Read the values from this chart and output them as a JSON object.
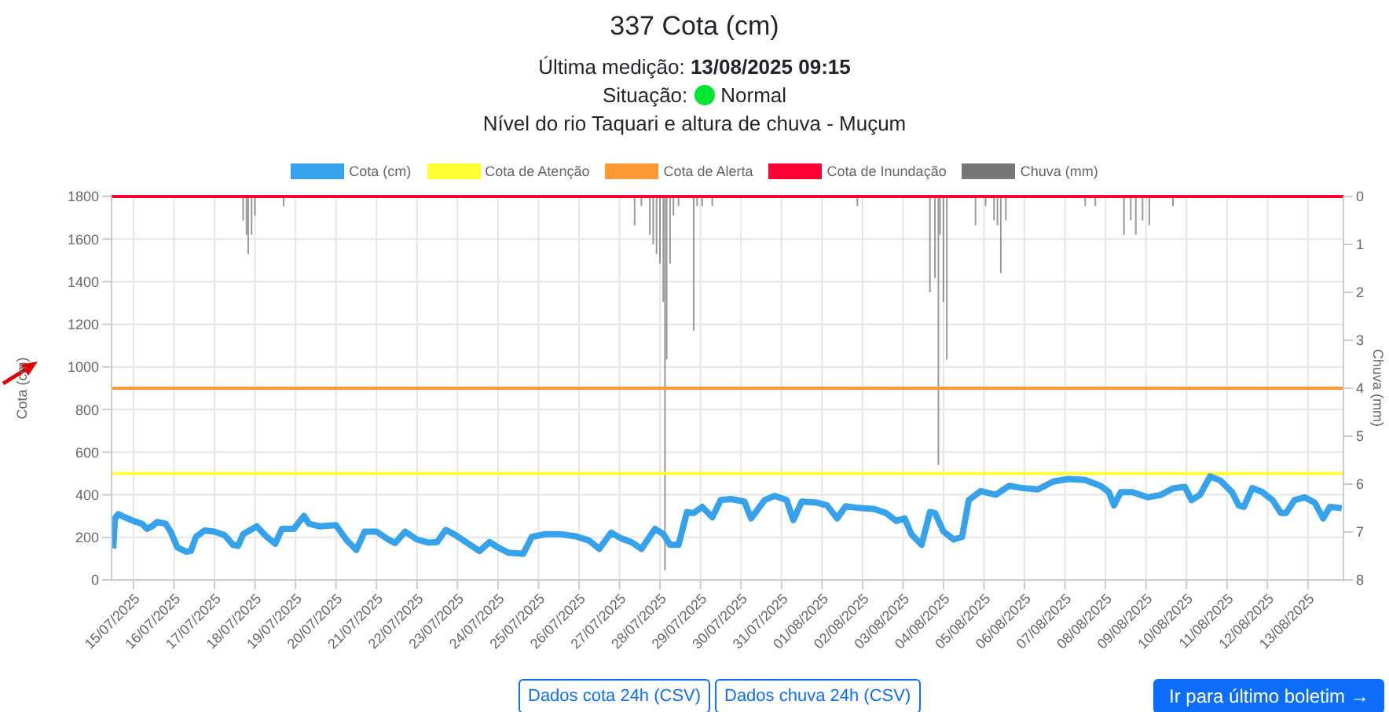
{
  "chart_data": {
    "type": "line",
    "title": "337 Cota (cm)",
    "subtitle": "Nível do rio Taquari e altura de chuva - Muçum",
    "annotations": [
      "Última medição:",
      "13/08/2025 09:15",
      "Situação:",
      "Normal",
      "Dados cota 24h (CSV)",
      "Dados chuva 24h (CSV)",
      "Ir para último boletim →"
    ],
    "ylabel": "Cota (cm)",
    "y2label": "Chuva (mm)",
    "xlim": [
      "2025-07-14T11:00",
      "2025-08-13T21:00"
    ],
    "xticks": [
      {
        "value": "2025-07-15",
        "label": "15/07/2025"
      },
      {
        "value": "2025-07-16",
        "label": "16/07/2025"
      },
      {
        "value": "2025-07-17",
        "label": "17/07/2025"
      },
      {
        "value": "2025-07-18",
        "label": "18/07/2025"
      },
      {
        "value": "2025-07-19",
        "label": "19/07/2025"
      },
      {
        "value": "2025-07-20",
        "label": "20/07/2025"
      },
      {
        "value": "2025-07-21",
        "label": "21/07/2025"
      },
      {
        "value": "2025-07-22",
        "label": "22/07/2025"
      },
      {
        "value": "2025-07-23",
        "label": "23/07/2025"
      },
      {
        "value": "2025-07-24",
        "label": "24/07/2025"
      },
      {
        "value": "2025-07-25",
        "label": "25/07/2025"
      },
      {
        "value": "2025-07-26",
        "label": "26/07/2025"
      },
      {
        "value": "2025-07-27",
        "label": "27/07/2025"
      },
      {
        "value": "2025-07-28",
        "label": "28/07/2025"
      },
      {
        "value": "2025-07-29",
        "label": "29/07/2025"
      },
      {
        "value": "2025-07-30",
        "label": "30/07/2025"
      },
      {
        "value": "2025-07-31",
        "label": "31/07/2025"
      },
      {
        "value": "2025-08-01",
        "label": "01/08/2025"
      },
      {
        "value": "2025-08-02",
        "label": "02/08/2025"
      },
      {
        "value": "2025-08-03",
        "label": "03/08/2025"
      },
      {
        "value": "2025-08-04",
        "label": "04/08/2025"
      },
      {
        "value": "2025-08-05",
        "label": "05/08/2025"
      },
      {
        "value": "2025-08-06",
        "label": "06/08/2025"
      },
      {
        "value": "2025-08-07",
        "label": "07/08/2025"
      },
      {
        "value": "2025-08-08",
        "label": "08/08/2025"
      },
      {
        "value": "2025-08-09",
        "label": "09/08/2025"
      },
      {
        "value": "2025-08-10",
        "label": "10/08/2025"
      },
      {
        "value": "2025-08-11",
        "label": "11/08/2025"
      },
      {
        "value": "2025-08-12",
        "label": "12/08/2025"
      },
      {
        "value": "2025-08-13",
        "label": "13/08/2025"
      }
    ],
    "ylim": [
      0,
      1800
    ],
    "yticks": [
      0,
      200,
      400,
      600,
      800,
      1000,
      1200,
      1400,
      1600,
      1800
    ],
    "y2lim": [
      8,
      0
    ],
    "y2ticks": [
      0,
      1,
      2,
      3,
      4,
      5,
      6,
      7,
      8
    ],
    "grid": true,
    "legend": "top",
    "marker": "none",
    "line_style": "solid",
    "ref_lines": [
      {
        "axis": "y",
        "value": 500,
        "label": "Cota de Atenção",
        "color": "#ffff33"
      },
      {
        "axis": "y",
        "value": 900,
        "label": "Cota de Alerta",
        "color": "#ff9933"
      },
      {
        "axis": "y",
        "value": 1800,
        "label": "Cota de Inundação",
        "color": "#ff0033"
      }
    ],
    "series": [
      {
        "name": "Cota (cm)",
        "color": "#36a2eb",
        "x": [
          "2025-07-14T12:00",
          "2025-07-14T13:00",
          "2025-07-14T15:00",
          "2025-07-14T19:00",
          "2025-07-15T00:00",
          "2025-07-15T05:00",
          "2025-07-15T08:00",
          "2025-07-15T11:00",
          "2025-07-15T14:00",
          "2025-07-15T19:00",
          "2025-07-15T22:00",
          "2025-07-16T02:00",
          "2025-07-16T07:00",
          "2025-07-16T10:00",
          "2025-07-16T13:00",
          "2025-07-16T18:00",
          "2025-07-17T00:00",
          "2025-07-17T06:00",
          "2025-07-17T11:00",
          "2025-07-17T14:00",
          "2025-07-17T17:00",
          "2025-07-18T01:00",
          "2025-07-18T07:00",
          "2025-07-18T12:00",
          "2025-07-18T16:00",
          "2025-07-18T23:00",
          "2025-07-19T05:00",
          "2025-07-19T08:00",
          "2025-07-19T14:00",
          "2025-07-20T00:00",
          "2025-07-20T06:00",
          "2025-07-20T12:00",
          "2025-07-20T17:00",
          "2025-07-21T00:00",
          "2025-07-21T07:00",
          "2025-07-21T11:00",
          "2025-07-21T17:00",
          "2025-07-22T00:00",
          "2025-07-22T07:00",
          "2025-07-22T12:00",
          "2025-07-22T17:00",
          "2025-07-22T23:00",
          "2025-07-23T05:00",
          "2025-07-23T13:00",
          "2025-07-23T19:00",
          "2025-07-24T00:00",
          "2025-07-24T06:00",
          "2025-07-24T15:00",
          "2025-07-24T20:00",
          "2025-07-25T04:00",
          "2025-07-25T13:00",
          "2025-07-25T22:00",
          "2025-07-26T06:00",
          "2025-07-26T12:00",
          "2025-07-26T19:00",
          "2025-07-27T01:00",
          "2025-07-27T07:00",
          "2025-07-27T13:00",
          "2025-07-27T21:00",
          "2025-07-28T02:00",
          "2025-07-28T06:00",
          "2025-07-28T11:00",
          "2025-07-28T16:00",
          "2025-07-28T20:00",
          "2025-07-29T01:00",
          "2025-07-29T07:00",
          "2025-07-29T12:00",
          "2025-07-29T18:00",
          "2025-07-30T02:00",
          "2025-07-30T06:00",
          "2025-07-30T14:00",
          "2025-07-30T20:00",
          "2025-07-31T03:00",
          "2025-07-31T07:00",
          "2025-07-31T12:00",
          "2025-07-31T21:00",
          "2025-08-01T03:00",
          "2025-08-01T09:00",
          "2025-08-01T14:00",
          "2025-08-01T22:00",
          "2025-08-02T07:00",
          "2025-08-02T14:00",
          "2025-08-02T20:00",
          "2025-08-03T01:00",
          "2025-08-03T05:00",
          "2025-08-03T11:00",
          "2025-08-03T16:00",
          "2025-08-03T19:00",
          "2025-08-04T00:00",
          "2025-08-04T06:00",
          "2025-08-04T11:00",
          "2025-08-04T15:00",
          "2025-08-04T22:00",
          "2025-08-05T07:00",
          "2025-08-05T15:00",
          "2025-08-05T22:00",
          "2025-08-06T08:00",
          "2025-08-06T17:00",
          "2025-08-07T02:00",
          "2025-08-07T12:00",
          "2025-08-07T21:00",
          "2025-08-08T02:00",
          "2025-08-08T05:00",
          "2025-08-08T09:00",
          "2025-08-08T16:00",
          "2025-08-09T01:00",
          "2025-08-09T09:00",
          "2025-08-09T16:00",
          "2025-08-09T23:00",
          "2025-08-10T03:00",
          "2025-08-10T08:00",
          "2025-08-10T14:00",
          "2025-08-10T20:00",
          "2025-08-11T03:00",
          "2025-08-11T07:00",
          "2025-08-11T10:00",
          "2025-08-11T15:00",
          "2025-08-11T21:00",
          "2025-08-12T03:00",
          "2025-08-12T08:00",
          "2025-08-12T11:00",
          "2025-08-12T16:00",
          "2025-08-12T22:00",
          "2025-08-13T04:00",
          "2025-08-13T09:00",
          "2025-08-13T13:00",
          "2025-08-13T20:00"
        ],
        "values": [
          148,
          289,
          309,
          294,
          277,
          264,
          240,
          252,
          272,
          264,
          227,
          153,
          133,
          136,
          202,
          232,
          227,
          210,
          165,
          160,
          215,
          252,
          202,
          170,
          240,
          240,
          301,
          264,
          252,
          257,
          190,
          141,
          227,
          227,
          190,
          173,
          227,
          190,
          175,
          178,
          235,
          210,
          178,
          136,
          178,
          153,
          128,
          123,
          202,
          215,
          215,
          205,
          185,
          146,
          222,
          195,
          178,
          146,
          240,
          215,
          165,
          165,
          319,
          314,
          343,
          294,
          375,
          380,
          368,
          289,
          375,
          395,
          375,
          281,
          368,
          363,
          350,
          289,
          346,
          338,
          333,
          314,
          277,
          289,
          215,
          165,
          319,
          314,
          227,
          190,
          202,
          375,
          417,
          400,
          442,
          432,
          425,
          462,
          474,
          469,
          442,
          412,
          350,
          412,
          412,
          388,
          400,
          430,
          437,
          375,
          400,
          486,
          467,
          412,
          350,
          343,
          432,
          412,
          375,
          314,
          314,
          375,
          388,
          363,
          289,
          343,
          337
        ]
      },
      {
        "name": "Chuva (mm)",
        "type": "bar",
        "axis": "y2",
        "color": "#777777",
        "x": [
          "2025-07-17T17:00",
          "2025-07-17T19:00",
          "2025-07-17T20:00",
          "2025-07-17T22:00",
          "2025-07-18T00:00",
          "2025-07-18T17:00",
          "2025-07-27T09:00",
          "2025-07-27T13:00",
          "2025-07-27T18:00",
          "2025-07-27T20:00",
          "2025-07-27T22:00",
          "2025-07-28T00:00",
          "2025-07-28T02:00",
          "2025-07-28T03:00",
          "2025-07-28T04:00",
          "2025-07-28T06:00",
          "2025-07-28T08:00",
          "2025-07-28T11:00",
          "2025-07-28T20:00",
          "2025-07-28T22:00",
          "2025-07-29T01:00",
          "2025-07-29T07:00",
          "2025-08-01T21:00",
          "2025-08-03T16:00",
          "2025-08-03T19:00",
          "2025-08-03T21:00",
          "2025-08-03T22:00",
          "2025-08-04T00:00",
          "2025-08-04T02:00",
          "2025-08-04T19:00",
          "2025-08-05T01:00",
          "2025-08-05T06:00",
          "2025-08-05T08:00",
          "2025-08-05T10:00",
          "2025-08-05T13:00",
          "2025-08-07T12:00",
          "2025-08-07T18:00",
          "2025-08-08T11:00",
          "2025-08-08T15:00",
          "2025-08-08T18:00",
          "2025-08-08T22:00",
          "2025-08-09T02:00",
          "2025-08-09T16:00"
        ],
        "values": [
          0.5,
          0.8,
          1.2,
          0.8,
          0.4,
          0.2,
          0.6,
          0.2,
          0.8,
          1.0,
          1.2,
          1.4,
          2.2,
          7.8,
          3.4,
          1.4,
          0.4,
          0.2,
          2.8,
          0.2,
          0.2,
          0.2,
          0.2,
          2.0,
          1.7,
          5.6,
          0.8,
          2.2,
          3.4,
          0.6,
          0.2,
          0.5,
          0.6,
          1.6,
          0.5,
          0.2,
          0.2,
          0.8,
          0.5,
          0.8,
          0.5,
          0.6,
          0.2
        ]
      }
    ]
  }
}
